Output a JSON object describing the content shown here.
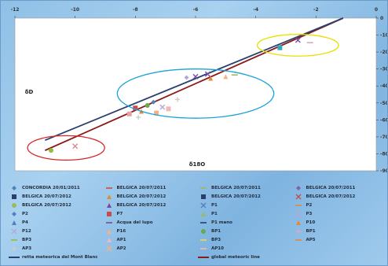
{
  "chart_data": {
    "type": "scatter",
    "title": "",
    "xlabel": "δ18O",
    "ylabel": "δD",
    "xlim": [
      -12,
      0
    ],
    "ylim": [
      -90,
      0
    ],
    "x_ticks": [
      -12,
      -10,
      -8,
      -6,
      -4,
      -2,
      0
    ],
    "y_ticks": [
      0,
      -10,
      -20,
      -30,
      -40,
      -50,
      -60,
      -70,
      -80,
      -90
    ],
    "grid": false,
    "lines": [
      {
        "name": "global meteoric line",
        "color": "#8b1a1a",
        "x": [
          -11.0,
          -1.1
        ],
        "y": [
          -78.0,
          0.0
        ]
      },
      {
        "name": "",
        "color": "#2a3f6e",
        "x": [
          -11.0,
          -1.1
        ],
        "y": [
          -72.0,
          0.0
        ]
      }
    ],
    "points": [
      {
        "x": -10.8,
        "y": -78.0,
        "color": "#8fbf3a",
        "shape": "circle"
      },
      {
        "x": -10.0,
        "y": -75.5,
        "color": "#d98b8b",
        "shape": "x"
      },
      {
        "x": -8.0,
        "y": -53.0,
        "color": "#c94a4a",
        "shape": "square"
      },
      {
        "x": -7.8,
        "y": -55.0,
        "color": "#e08a3a",
        "shape": "triangle"
      },
      {
        "x": -7.6,
        "y": -51.5,
        "color": "#6aa84f",
        "shape": "circle"
      },
      {
        "x": -7.4,
        "y": -49.5,
        "color": "#4f81bd",
        "shape": "diamond"
      },
      {
        "x": -7.3,
        "y": -56.0,
        "color": "#f4b183",
        "shape": "square"
      },
      {
        "x": -7.1,
        "y": -52.5,
        "color": "#b4a7d6",
        "shape": "x"
      },
      {
        "x": -6.9,
        "y": -53.5,
        "color": "#f2b8b8",
        "shape": "square"
      },
      {
        "x": -8.2,
        "y": -56.5,
        "color": "#e5a0a0",
        "shape": "square"
      },
      {
        "x": -7.9,
        "y": -58.5,
        "color": "#ffffff",
        "shape": "plus"
      },
      {
        "x": -6.6,
        "y": -48.0,
        "color": "#ffffff",
        "shape": "plus"
      },
      {
        "x": -6.0,
        "y": -34.5,
        "color": "#7a4aa0",
        "shape": "x"
      },
      {
        "x": -5.6,
        "y": -33.0,
        "color": "#7a4aa0",
        "shape": "x"
      },
      {
        "x": -5.5,
        "y": -35.5,
        "color": "#e08a3a",
        "shape": "triangle"
      },
      {
        "x": -5.0,
        "y": -34.5,
        "color": "#f4b183",
        "shape": "triangle"
      },
      {
        "x": -6.3,
        "y": -35.0,
        "color": "#b4a7d6",
        "shape": "diamond"
      },
      {
        "x": -4.7,
        "y": -33.5,
        "color": "#9bbb59",
        "shape": "dash"
      },
      {
        "x": -3.2,
        "y": -17.5,
        "color": "#31a9b8",
        "shape": "square"
      },
      {
        "x": -2.6,
        "y": -13.0,
        "color": "#7a4aa0",
        "shape": "x"
      },
      {
        "x": -2.2,
        "y": -14.5,
        "color": "#d9a6c9",
        "shape": "dash"
      }
    ],
    "ellipses": [
      {
        "cx": -10.3,
        "cy": -76.5,
        "rx": 1.28,
        "ry": 7.2,
        "color": "#d62728"
      },
      {
        "cx": -6.0,
        "cy": -44.5,
        "rx": 2.6,
        "ry": 14.5,
        "color": "#1aa3d9"
      },
      {
        "cx": -2.6,
        "cy": -16.0,
        "rx": 1.35,
        "ry": 6.4,
        "color": "#e8e000"
      }
    ],
    "legend_position": "bottom",
    "legend": [
      {
        "label": "CONCORDIA 20/01/2011",
        "color": "#4f81bd",
        "marker": "diamond"
      },
      {
        "label": "BELGICA 20/07/2011",
        "color": "#c0504d",
        "marker": "dash"
      },
      {
        "label": "BELGICA 20/07/2011",
        "color": "#9bbb59",
        "marker": "dash"
      },
      {
        "label": "BELGICA 20/07/2011",
        "color": "#8064a2",
        "marker": "diamond"
      },
      {
        "label": "BELGICA 20/07/2012",
        "color": "#2a3f6e",
        "marker": "square"
      },
      {
        "label": "BELGICA 20/07/2012",
        "color": "#e08a3a",
        "marker": "triangle"
      },
      {
        "label": "BELGICA 20/07/2012",
        "color": "#2a3f6e",
        "marker": "square"
      },
      {
        "label": "BELGICA 20/07/2012",
        "color": "#c94a4a",
        "marker": "x"
      },
      {
        "label": "BELGICA 20/07/2012",
        "color": "#9bbb59",
        "marker": "circle"
      },
      {
        "label": "BELGICA 20/07/2012",
        "color": "#7a4aa0",
        "marker": "triangle"
      },
      {
        "label": "P1",
        "color": "#4f81bd",
        "marker": "x"
      },
      {
        "label": "P2",
        "color": "#e08a3a",
        "marker": "dash"
      },
      {
        "label": "P2",
        "color": "#4f81bd",
        "marker": "diamond"
      },
      {
        "label": "P7",
        "color": "#c94a4a",
        "marker": "square"
      },
      {
        "label": "P1",
        "color": "#9bbb59",
        "marker": "triangle"
      },
      {
        "label": "P3",
        "color": "#b4a7d6",
        "marker": "x"
      },
      {
        "label": "P4",
        "color": "#4f81bd",
        "marker": "triangle"
      },
      {
        "label": "Acqua del lupo",
        "color": "#7a4aa0",
        "marker": "dash"
      },
      {
        "label": "P1 mano",
        "color": "#2a3f6e",
        "marker": "dash"
      },
      {
        "label": "P10",
        "color": "#e08a3a",
        "marker": "triangle"
      },
      {
        "label": "P12",
        "color": "#b4a7d6",
        "marker": "x"
      },
      {
        "label": "P16",
        "color": "#f4b183",
        "marker": "triangle"
      },
      {
        "label": "BP1",
        "color": "#6aa84f",
        "marker": "circle"
      },
      {
        "label": "BP1",
        "color": "#d9a6c9",
        "marker": "plus"
      },
      {
        "label": "BP3",
        "color": "#8fbf3a",
        "marker": "dash"
      },
      {
        "label": "AP1",
        "color": "#f2b8b8",
        "marker": "triangle"
      },
      {
        "label": "BP3",
        "color": "#e6d85a",
        "marker": "dash"
      },
      {
        "label": "AP5",
        "color": "#e08a3a",
        "marker": "dash"
      },
      {
        "label": "AP3",
        "color": "#ffffff",
        "marker": "plus"
      },
      {
        "label": "AP2",
        "color": "#f4b183",
        "marker": "x"
      },
      {
        "label": "AP10",
        "color": "#f2b8b8",
        "marker": "dash"
      },
      {
        "label": "retta meteorica del Mont Blanc",
        "color": "#2a3f6e",
        "marker": "line"
      },
      {
        "label": "global meteoric line",
        "color": "#8b1a1a",
        "marker": "line"
      }
    ]
  }
}
